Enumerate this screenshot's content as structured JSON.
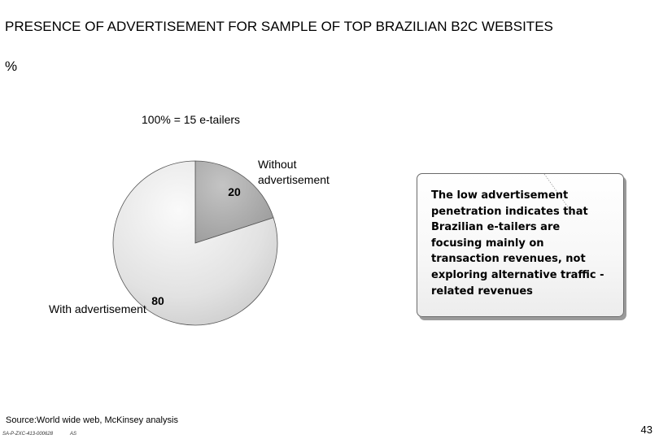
{
  "header": {
    "title": "PRESENCE OF ADVERTISEMENT FOR SAMPLE OF TOP BRAZILIAN B2C WEBSITES",
    "unit": "%"
  },
  "chart_data": {
    "type": "pie",
    "base_label": "100% = 15 e-tailers",
    "slices": [
      {
        "label": "Without advertisement",
        "value": 20,
        "value_label": "20",
        "color": "#a8a8a8"
      },
      {
        "label": "With advertisement",
        "value": 80,
        "value_label": "80",
        "color": "#e6e6e6"
      }
    ],
    "start": "12 o'clock",
    "direction": "clockwise"
  },
  "note": {
    "text": "The low advertisement penetration indicates that Brazilian e-tailers are focusing mainly on transaction revenues, not exploring alternative traffic -related revenues"
  },
  "footer": {
    "source": "Source:World wide web, McKinsey analysis",
    "doc_id": "SA-P-ZXC-413-000628",
    "initials": "AS",
    "page_number": "43"
  }
}
